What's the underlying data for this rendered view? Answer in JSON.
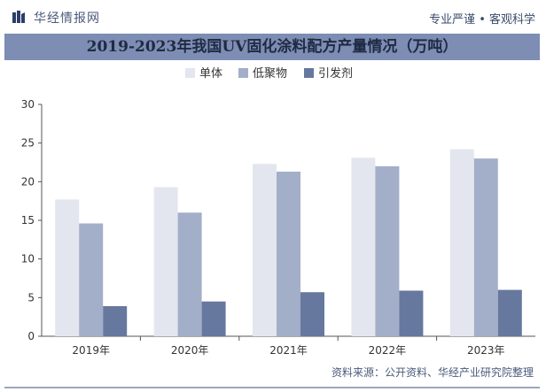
{
  "header": {
    "logo_text": "华经情报网",
    "tagline": "专业严谨 • 客观科学"
  },
  "chart_data": {
    "type": "bar",
    "title": "2019-2023年我国UV固化涂料配方产量情况（万吨）",
    "categories": [
      "2019年",
      "2020年",
      "2021年",
      "2022年",
      "2023年"
    ],
    "series": [
      {
        "name": "单体",
        "color": "#e3e6ee",
        "values": [
          17.7,
          19.3,
          22.3,
          23.1,
          24.2
        ]
      },
      {
        "name": "低聚物",
        "color": "#a3aec9",
        "values": [
          14.6,
          16.0,
          21.3,
          22.0,
          23.0
        ]
      },
      {
        "name": "引发剂",
        "color": "#67789f",
        "values": [
          3.9,
          4.5,
          5.7,
          5.9,
          6.0
        ]
      }
    ],
    "yticks": [
      0,
      5,
      10,
      15,
      20,
      25,
      30
    ],
    "ylim": [
      0,
      30
    ],
    "legend_position": "top-center",
    "grid": false
  },
  "footer": {
    "source": "资料来源：公开资料、华经产业研究院整理"
  }
}
